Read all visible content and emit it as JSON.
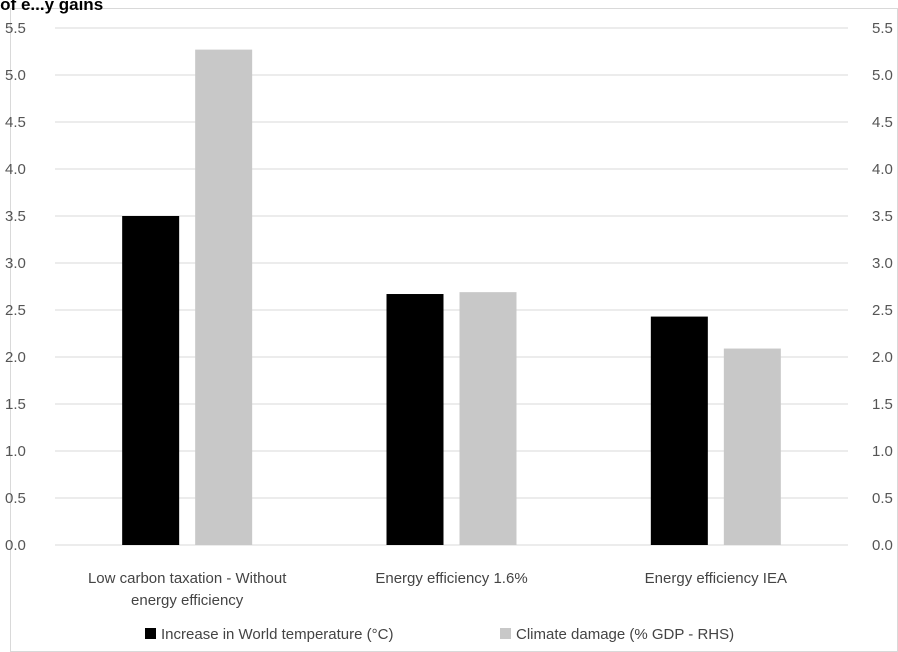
{
  "chart_data": {
    "type": "bar",
    "title": "y of e...y gains",
    "categories": [
      [
        "Low carbon taxation - Without",
        "energy efficiency"
      ],
      [
        "Energy efficiency 1.6%"
      ],
      [
        "Energy efficiency IEA"
      ]
    ],
    "series": [
      {
        "name": "Increase in World temperature (°C)",
        "color": "#000000",
        "values": [
          3.5,
          2.67,
          2.43
        ]
      },
      {
        "name": "Climate damage (% GDP - RHS)",
        "color": "#c8c8c8",
        "values": [
          5.27,
          2.69,
          2.09
        ]
      }
    ],
    "ylim": [
      0,
      5.5
    ],
    "y2lim": [
      0,
      5.5
    ],
    "yticks": [
      "0.0",
      "0.5",
      "1.0",
      "1.5",
      "2.0",
      "2.5",
      "3.0",
      "3.5",
      "4.0",
      "4.5",
      "5.0",
      "5.5"
    ],
    "y2ticks": [
      "0.0",
      "0.5",
      "1.0",
      "1.5",
      "2.0",
      "2.5",
      "3.0",
      "3.5",
      "4.0",
      "4.5",
      "5.0",
      "5.5"
    ],
    "grid": true,
    "legend": "bottom"
  }
}
